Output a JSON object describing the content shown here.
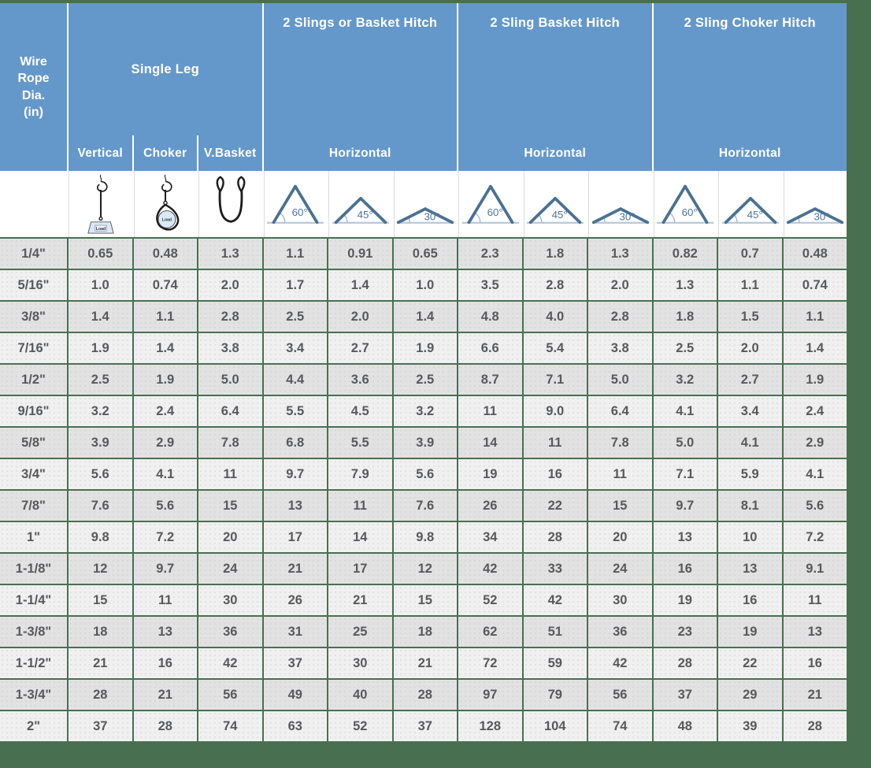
{
  "colors": {
    "page_background": "#487050",
    "header_blue": "#6598ca",
    "row_dark": "#e2e2e3",
    "row_light": "#f0f0f1",
    "value_text": "#58595b",
    "triangle_stroke": "#4a7191"
  },
  "header": {
    "dia_lines": [
      "Wire",
      "Rope",
      "Dia.",
      "(in)"
    ],
    "groups": [
      {
        "title": "Single Leg",
        "subs": [
          "Vertical",
          "Choker",
          "V.Basket"
        ]
      },
      {
        "title": "2 Slings or Basket Hitch",
        "sub": "Horizontal"
      },
      {
        "title": "2 Sling Basket Hitch",
        "sub": "Horizontal"
      },
      {
        "title": "2 Sling Choker Hitch",
        "sub": "Horizontal"
      }
    ],
    "angles": [
      "60°",
      "45°",
      "30°"
    ]
  },
  "icons": {
    "load_label": "Load",
    "sling_icons": [
      "vertical-sling-icon",
      "choker-sling-icon",
      "vertical-basket-sling-icon"
    ],
    "angle_icons": [
      "angle-60-icon",
      "angle-45-icon",
      "angle-30-icon"
    ]
  },
  "chart_data": {
    "type": "table",
    "columns": [
      "Wire Rope Dia. (in)",
      "Single Leg - Vertical",
      "Single Leg - Choker",
      "Single Leg - V.Basket",
      "2 Slings or Basket Hitch - Horizontal 60°",
      "2 Slings or Basket Hitch - Horizontal 45°",
      "2 Slings or Basket Hitch - Horizontal 30°",
      "2 Sling Basket Hitch - Horizontal 60°",
      "2 Sling Basket Hitch - Horizontal 45°",
      "2 Sling Basket Hitch - Horizontal 30°",
      "2 Sling Choker Hitch - Horizontal 60°",
      "2 Sling Choker Hitch - Horizontal 45°",
      "2 Sling Choker Hitch - Horizontal 30°"
    ],
    "rows": [
      {
        "dia": "1/4\"",
        "values": [
          "0.65",
          "0.48",
          "1.3",
          "1.1",
          "0.91",
          "0.65",
          "2.3",
          "1.8",
          "1.3",
          "0.82",
          "0.7",
          "0.48"
        ]
      },
      {
        "dia": "5/16\"",
        "values": [
          "1.0",
          "0.74",
          "2.0",
          "1.7",
          "1.4",
          "1.0",
          "3.5",
          "2.8",
          "2.0",
          "1.3",
          "1.1",
          "0.74"
        ]
      },
      {
        "dia": "3/8\"",
        "values": [
          "1.4",
          "1.1",
          "2.8",
          "2.5",
          "2.0",
          "1.4",
          "4.8",
          "4.0",
          "2.8",
          "1.8",
          "1.5",
          "1.1"
        ]
      },
      {
        "dia": "7/16\"",
        "values": [
          "1.9",
          "1.4",
          "3.8",
          "3.4",
          "2.7",
          "1.9",
          "6.6",
          "5.4",
          "3.8",
          "2.5",
          "2.0",
          "1.4"
        ]
      },
      {
        "dia": "1/2\"",
        "values": [
          "2.5",
          "1.9",
          "5.0",
          "4.4",
          "3.6",
          "2.5",
          "8.7",
          "7.1",
          "5.0",
          "3.2",
          "2.7",
          "1.9"
        ]
      },
      {
        "dia": "9/16\"",
        "values": [
          "3.2",
          "2.4",
          "6.4",
          "5.5",
          "4.5",
          "3.2",
          "11",
          "9.0",
          "6.4",
          "4.1",
          "3.4",
          "2.4"
        ]
      },
      {
        "dia": "5/8\"",
        "values": [
          "3.9",
          "2.9",
          "7.8",
          "6.8",
          "5.5",
          "3.9",
          "14",
          "11",
          "7.8",
          "5.0",
          "4.1",
          "2.9"
        ]
      },
      {
        "dia": "3/4\"",
        "values": [
          "5.6",
          "4.1",
          "11",
          "9.7",
          "7.9",
          "5.6",
          "19",
          "16",
          "11",
          "7.1",
          "5.9",
          "4.1"
        ]
      },
      {
        "dia": "7/8\"",
        "values": [
          "7.6",
          "5.6",
          "15",
          "13",
          "11",
          "7.6",
          "26",
          "22",
          "15",
          "9.7",
          "8.1",
          "5.6"
        ]
      },
      {
        "dia": "1\"",
        "values": [
          "9.8",
          "7.2",
          "20",
          "17",
          "14",
          "9.8",
          "34",
          "28",
          "20",
          "13",
          "10",
          "7.2"
        ]
      },
      {
        "dia": "1-1/8\"",
        "values": [
          "12",
          "9.7",
          "24",
          "21",
          "17",
          "12",
          "42",
          "33",
          "24",
          "16",
          "13",
          "9.1"
        ]
      },
      {
        "dia": "1-1/4\"",
        "values": [
          "15",
          "11",
          "30",
          "26",
          "21",
          "15",
          "52",
          "42",
          "30",
          "19",
          "16",
          "11"
        ]
      },
      {
        "dia": "1-3/8\"",
        "values": [
          "18",
          "13",
          "36",
          "31",
          "25",
          "18",
          "62",
          "51",
          "36",
          "23",
          "19",
          "13"
        ]
      },
      {
        "dia": "1-1/2\"",
        "values": [
          "21",
          "16",
          "42",
          "37",
          "30",
          "21",
          "72",
          "59",
          "42",
          "28",
          "22",
          "16"
        ]
      },
      {
        "dia": "1-3/4\"",
        "values": [
          "28",
          "21",
          "56",
          "49",
          "40",
          "28",
          "97",
          "79",
          "56",
          "37",
          "29",
          "21"
        ]
      },
      {
        "dia": "2\"",
        "values": [
          "37",
          "28",
          "74",
          "63",
          "52",
          "37",
          "128",
          "104",
          "74",
          "48",
          "39",
          "28"
        ]
      }
    ]
  }
}
